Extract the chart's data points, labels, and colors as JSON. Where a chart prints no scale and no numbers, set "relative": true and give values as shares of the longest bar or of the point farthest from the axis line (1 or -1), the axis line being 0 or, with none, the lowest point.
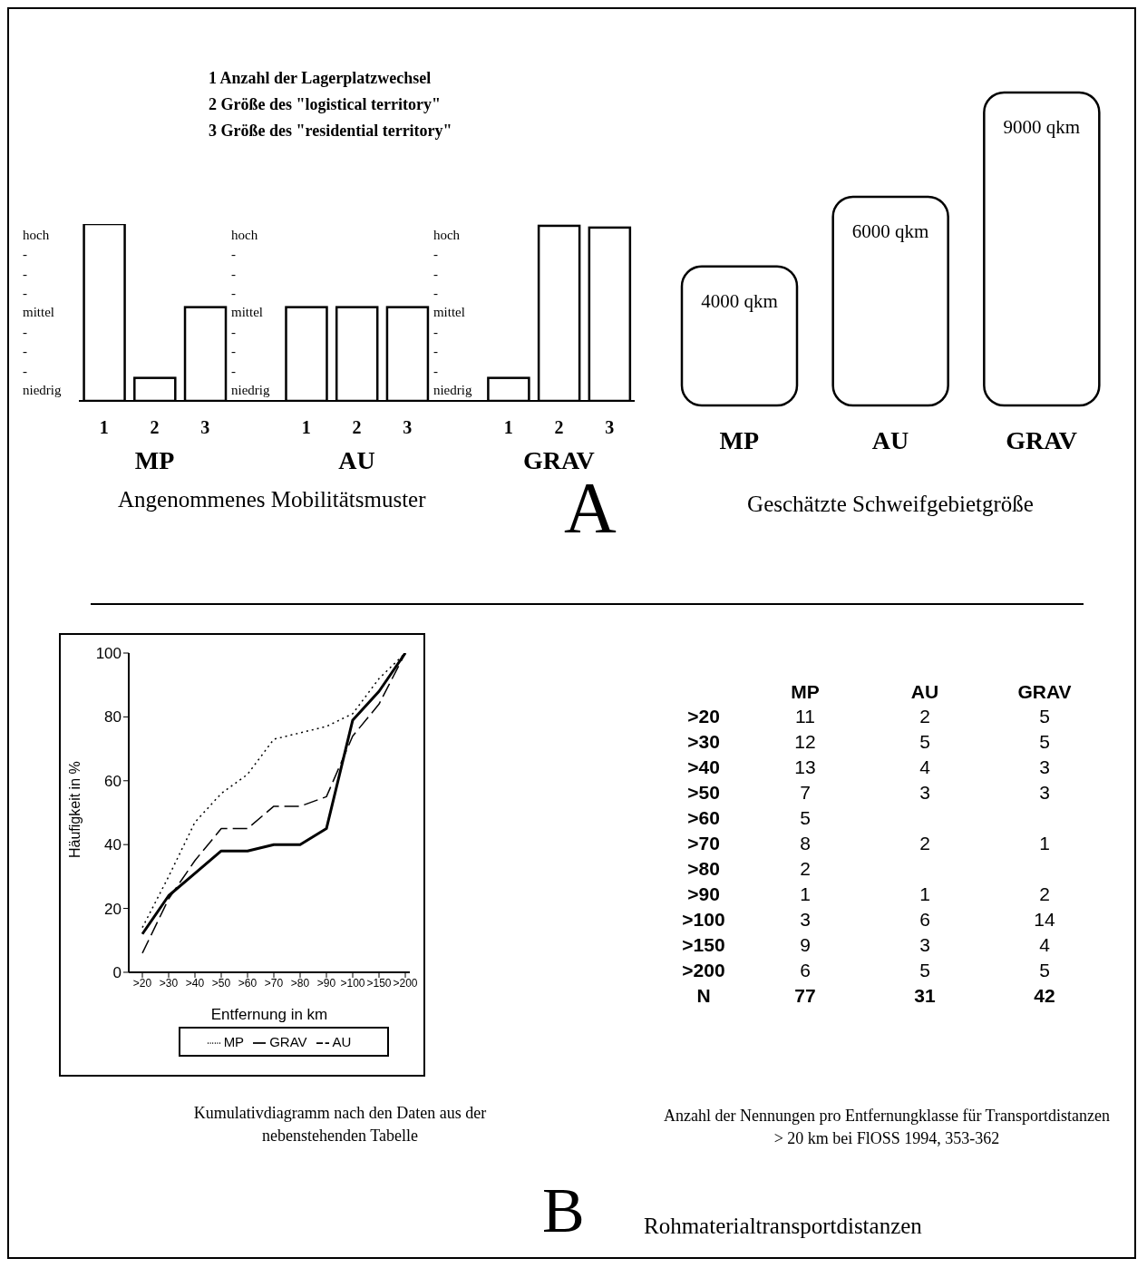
{
  "chart_data": [
    {
      "type": "bar",
      "relative": true,
      "stacked": true,
      "categories": [
        "1",
        "2",
        "3",
        null,
        "1",
        "2",
        "3",
        null,
        "1",
        "2",
        "3"
      ],
      "series": [
        {
          "name": "MP",
          "color": "#ffffff",
          "values": [
            1,
            0.13,
            0.53,
            null,
            null,
            null,
            null,
            null,
            null,
            null,
            null
          ]
        },
        {
          "name": "AU",
          "color": "#ffffff",
          "values": [
            null,
            null,
            null,
            null,
            0.53,
            0.53,
            0.53,
            null,
            null,
            null,
            null
          ]
        },
        {
          "name": "GRAV",
          "color": "#ffffff",
          "values": [
            null,
            null,
            null,
            null,
            null,
            null,
            null,
            null,
            0.13,
            0.99,
            0.98
          ]
        }
      ],
      "annotations": [
        "1 Anzahl der Lagerplatzwechsel",
        "2 Größe des \"logistical territory\"",
        "3 Größe des \"residential territory\"",
        "hoch",
        "-",
        "-",
        "-",
        "mittel",
        "-",
        "-",
        "-",
        "niedrig",
        "Angenommenes Mobilitätsmuster"
      ]
    },
    {
      "type": "other",
      "title": "Geschätzte Schweifgebietgröße",
      "categories": [
        "MP",
        "AU",
        "GRAV"
      ],
      "values": [
        4000,
        6000,
        9000
      ],
      "value_labels": [
        "4000 qkm",
        "6000 qkm",
        "9000 qkm"
      ],
      "color": "#ffffff",
      "annotations": [
        "A"
      ]
    },
    {
      "type": "line",
      "xlabel": "Entfernung in km",
      "ylabel": "Häufigkeit in %",
      "categories": [
        ">20",
        ">30",
        ">40",
        ">50",
        ">60",
        ">70",
        ">80",
        ">90",
        ">100",
        ">150",
        ">200"
      ],
      "ylim": [
        0,
        100
      ],
      "yticks": [
        0,
        20,
        40,
        60,
        80,
        100
      ],
      "legend": "bottom",
      "marker": "none",
      "series": [
        {
          "name": "MP",
          "color": "#000000",
          "line_style": "dotted",
          "values": [
            14,
            30,
            47,
            56,
            62,
            73,
            75,
            77,
            81,
            92,
            100
          ]
        },
        {
          "name": "GRAV",
          "color": "#000000",
          "line_style": "solid",
          "values": [
            12,
            24,
            31,
            38,
            38,
            40,
            40,
            45,
            79,
            88,
            100
          ]
        },
        {
          "name": "AU",
          "color": "#000000",
          "line_style": "dashed",
          "values": [
            6,
            23,
            35,
            45,
            45,
            52,
            52,
            55,
            74,
            84,
            100
          ]
        }
      ],
      "annotations": [
        "Kumulativdiagramm nach den Daten aus der nebenstehenden Tabelle"
      ]
    },
    {
      "type": "other",
      "data_labels": true,
      "categories": [
        ">20",
        ">30",
        ">40",
        ">50",
        ">60",
        ">70",
        ">80",
        ">90",
        ">100",
        ">150",
        ">200",
        "N"
      ],
      "series": [
        {
          "name": "MP",
          "values": [
            11,
            12,
            13,
            7,
            5,
            8,
            2,
            1,
            3,
            9,
            6,
            77
          ]
        },
        {
          "name": "AU",
          "values": [
            2,
            5,
            4,
            3,
            null,
            2,
            null,
            1,
            6,
            3,
            5,
            31
          ]
        },
        {
          "name": "GRAV",
          "values": [
            5,
            5,
            3,
            3,
            null,
            1,
            null,
            2,
            14,
            4,
            5,
            42
          ]
        }
      ],
      "annotations": [
        "Anzahl der Nennungen pro Entfernungklasse für Transportdistanzen > 20 km bei FlOSS 1994, 353-362",
        "B",
        "Rohmaterialtransportdistanzen"
      ]
    }
  ]
}
